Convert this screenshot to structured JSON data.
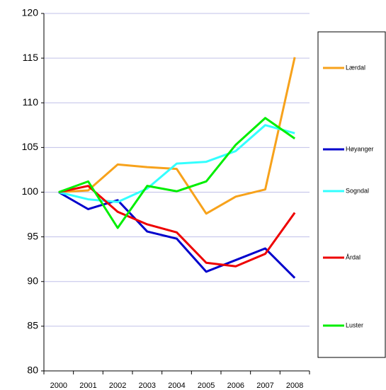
{
  "chart_data": {
    "type": "line",
    "categories": [
      "2000",
      "2001",
      "2002",
      "2003",
      "2004",
      "2005",
      "2006",
      "2007",
      "2008"
    ],
    "series": [
      {
        "name": "Lærdal",
        "color": "#f7a21b",
        "values": [
          100,
          100.2,
          103.1,
          102.8,
          102.6,
          97.6,
          99.5,
          100.3,
          115.1
        ]
      },
      {
        "name": "Høyanger",
        "color": "#0000cc",
        "values": [
          100,
          98.1,
          99.1,
          95.6,
          94.8,
          91.1,
          92.4,
          93.7,
          90.4
        ]
      },
      {
        "name": "Sogndal",
        "color": "#33ffff",
        "values": [
          100,
          99.2,
          98.9,
          100.4,
          103.2,
          103.4,
          104.6,
          107.5,
          106.6
        ]
      },
      {
        "name": "Årdal",
        "color": "#ee0000",
        "values": [
          100,
          100.7,
          97.8,
          96.4,
          95.5,
          92.1,
          91.7,
          93.1,
          97.7
        ]
      },
      {
        "name": "Luster",
        "color": "#00ee00",
        "values": [
          100,
          101.2,
          96.0,
          100.7,
          100.1,
          101.2,
          105.3,
          108.3,
          106.0
        ]
      }
    ],
    "ylim": [
      80,
      120
    ],
    "yticks": [
      80,
      85,
      90,
      95,
      100,
      105,
      110,
      115,
      120
    ],
    "grid": true,
    "legend": "right"
  }
}
